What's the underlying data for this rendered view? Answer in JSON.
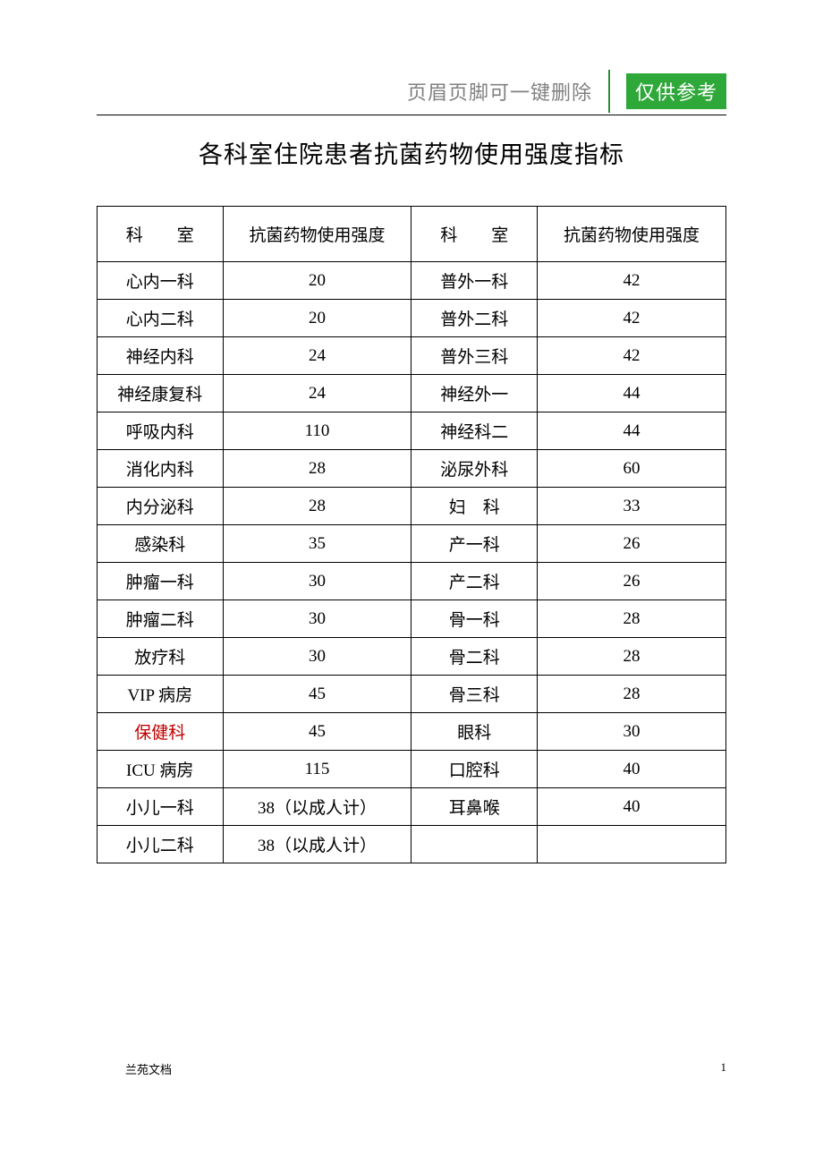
{
  "header": {
    "note": "页眉页脚可一键删除",
    "badge": "仅供参考"
  },
  "title": "各科室住院患者抗菌药物使用强度指标",
  "table": {
    "type": "table",
    "columns": [
      {
        "key": "dept_left",
        "label_html": "科　　室",
        "spaced": true
      },
      {
        "key": "val_left",
        "label": "抗菌药物使用强度"
      },
      {
        "key": "dept_right",
        "label_html": "科　　室",
        "spaced": true
      },
      {
        "key": "val_right",
        "label": "抗菌药物使用强度"
      }
    ],
    "rows": [
      {
        "dept_left": "心内一科",
        "val_left": "20",
        "dept_right": "普外一科",
        "val_right": "42"
      },
      {
        "dept_left": "心内二科",
        "val_left": "20",
        "dept_right": "普外二科",
        "val_right": "42"
      },
      {
        "dept_left": "神经内科",
        "val_left": "24",
        "dept_right": "普外三科",
        "val_right": "42"
      },
      {
        "dept_left": "神经康复科",
        "val_left": "24",
        "dept_right": "神经外一",
        "val_right": "44"
      },
      {
        "dept_left": "呼吸内科",
        "val_left": "110",
        "dept_right": "神经科二",
        "val_right": "44"
      },
      {
        "dept_left": "消化内科",
        "val_left": "28",
        "dept_right": "泌尿外科",
        "val_right": "60"
      },
      {
        "dept_left": "内分泌科",
        "val_left": "28",
        "dept_right": "妇　科",
        "val_right": "33"
      },
      {
        "dept_left": "感染科",
        "val_left": "35",
        "dept_right": "产一科",
        "val_right": "26"
      },
      {
        "dept_left": "肿瘤一科",
        "val_left": "30",
        "dept_right": "产二科",
        "val_right": "26"
      },
      {
        "dept_left": "肿瘤二科",
        "val_left": "30",
        "dept_right": "骨一科",
        "val_right": "28"
      },
      {
        "dept_left": "放疗科",
        "val_left": "30",
        "dept_right": "骨二科",
        "val_right": "28"
      },
      {
        "dept_left": "VIP 病房",
        "val_left": "45",
        "dept_right": "骨三科",
        "val_right": "28"
      },
      {
        "dept_left": "保健科",
        "val_left": "45",
        "dept_right": "眼科",
        "val_right": "30",
        "left_red": true
      },
      {
        "dept_left": "ICU 病房",
        "val_left": "115",
        "dept_right": "口腔科",
        "val_right": "40"
      },
      {
        "dept_left": "小儿一科",
        "val_left": "38（以成人计）",
        "dept_right": "耳鼻喉",
        "val_right": "40"
      },
      {
        "dept_left": "小儿二科",
        "val_left": "38（以成人计）",
        "dept_right": "",
        "val_right": ""
      }
    ],
    "border_color": "#000000",
    "header_fontfamily": "SimHei",
    "body_fontfamily": "SimSun",
    "header_fontsize": 19,
    "body_fontsize": 19,
    "red_color": "#c00000"
  },
  "footer": {
    "left": "兰苑文档",
    "page_number": "1"
  }
}
